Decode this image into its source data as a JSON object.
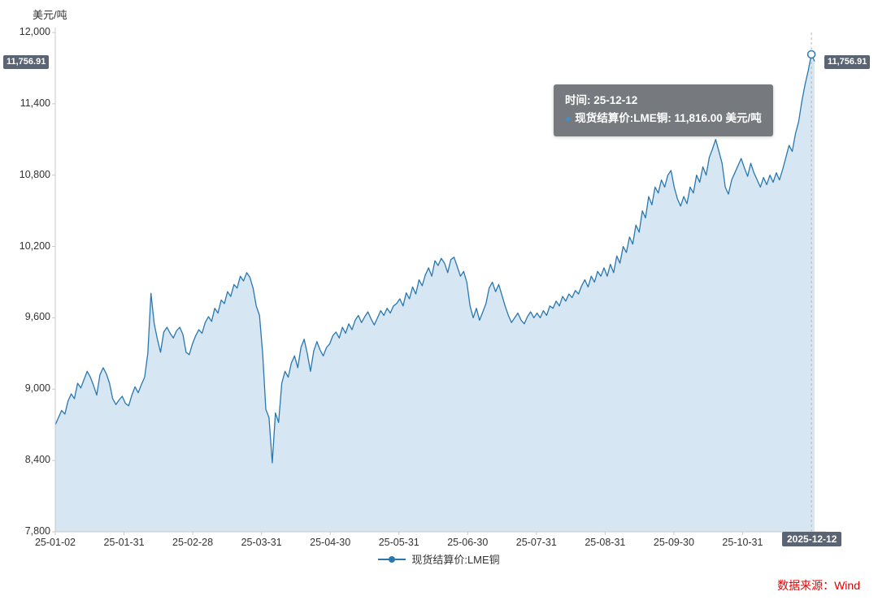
{
  "chart_data": {
    "type": "area",
    "title": "",
    "xlabel": "",
    "ylabel": "美元/吨",
    "ylim": [
      7800,
      12000
    ],
    "grid": false,
    "legend_position": "bottom",
    "y_tick_values": [
      7800,
      8400,
      9000,
      9600,
      10200,
      10800,
      11400,
      12000
    ],
    "y_tick_labels": [
      "7,800",
      "8,400",
      "9,000",
      "9,600",
      "10,200",
      "10,800",
      "11,400",
      "12,000"
    ],
    "x_tick_labels": [
      "25-01-02",
      "25-01-31",
      "25-02-28",
      "25-03-31",
      "25-04-30",
      "25-05-31",
      "25-06-30",
      "25-07-31",
      "25-08-31",
      "25-09-30",
      "25-10-31"
    ],
    "latest_value": 11756.91,
    "latest_value_label": "11,756.91",
    "hover_point": {
      "date_label": "2025-12-12",
      "value": 11816,
      "value_label": "11,816.00"
    },
    "series": [
      {
        "name": "现货结算价:LME铜",
        "values": [
          8700,
          8760,
          8820,
          8790,
          8900,
          8960,
          8920,
          9050,
          9010,
          9080,
          9150,
          9100,
          9030,
          8950,
          9120,
          9180,
          9130,
          9050,
          8920,
          8870,
          8910,
          8940,
          8880,
          8860,
          8950,
          9020,
          8970,
          9040,
          9100,
          9300,
          9806,
          9550,
          9420,
          9310,
          9480,
          9520,
          9470,
          9430,
          9490,
          9520,
          9460,
          9310,
          9290,
          9380,
          9450,
          9500,
          9470,
          9560,
          9610,
          9570,
          9680,
          9640,
          9750,
          9720,
          9820,
          9780,
          9880,
          9850,
          9950,
          9910,
          9980,
          9940,
          9850,
          9700,
          9620,
          9300,
          8830,
          8760,
          8380,
          8800,
          8720,
          9050,
          9150,
          9100,
          9220,
          9280,
          9180,
          9350,
          9420,
          9300,
          9150,
          9320,
          9400,
          9330,
          9280,
          9350,
          9380,
          9450,
          9480,
          9430,
          9520,
          9470,
          9550,
          9500,
          9580,
          9620,
          9560,
          9610,
          9650,
          9590,
          9540,
          9600,
          9660,
          9620,
          9680,
          9640,
          9700,
          9720,
          9760,
          9700,
          9810,
          9760,
          9860,
          9800,
          9920,
          9870,
          9960,
          10020,
          9950,
          10080,
          10040,
          10100,
          10060,
          9980,
          10090,
          10110,
          10030,
          9950,
          9990,
          9900,
          9700,
          9600,
          9680,
          9580,
          9650,
          9720,
          9850,
          9900,
          9820,
          9880,
          9790,
          9700,
          9620,
          9560,
          9600,
          9640,
          9580,
          9550,
          9610,
          9650,
          9600,
          9640,
          9600,
          9660,
          9620,
          9700,
          9680,
          9740,
          9700,
          9780,
          9740,
          9800,
          9770,
          9830,
          9800,
          9870,
          9920,
          9860,
          9950,
          9900,
          9990,
          9950,
          10020,
          9950,
          10050,
          9980,
          10120,
          10060,
          10200,
          10150,
          10280,
          10220,
          10380,
          10320,
          10500,
          10440,
          10620,
          10550,
          10700,
          10650,
          10760,
          10700,
          10800,
          10840,
          10700,
          10600,
          10540,
          10620,
          10560,
          10700,
          10650,
          10800,
          10740,
          10870,
          10800,
          10950,
          11020,
          11100,
          11000,
          10900,
          10700,
          10640,
          10760,
          10820,
          10880,
          10940,
          10860,
          10790,
          10900,
          10820,
          10760,
          10700,
          10780,
          10720,
          10800,
          10740,
          10820,
          10760,
          10850,
          10950,
          11050,
          11000,
          11150,
          11250,
          11420,
          11560,
          11680,
          11816,
          11756.91
        ]
      }
    ]
  },
  "tooltip": {
    "time_line": "时间: 25-12-12",
    "dot": "●",
    "series_line": "现货结算价:LME铜: 11,816.00  美元/吨"
  },
  "legend": {
    "label": "现货结算价:LME铜"
  },
  "badges": {
    "left_value": "11,756.91",
    "right_value": "11,756.91",
    "x_axis_date": "2025-12-12"
  },
  "source_text": "数据来源：Wind",
  "colors": {
    "line": "#2878af",
    "fill": "#d6e6f2",
    "axis": "#c9c9c9",
    "hover_line": "#b5b5b5",
    "badge_bg": "#5b6472",
    "tooltip_bg": "#676b70",
    "accent_red": "#e60000"
  }
}
